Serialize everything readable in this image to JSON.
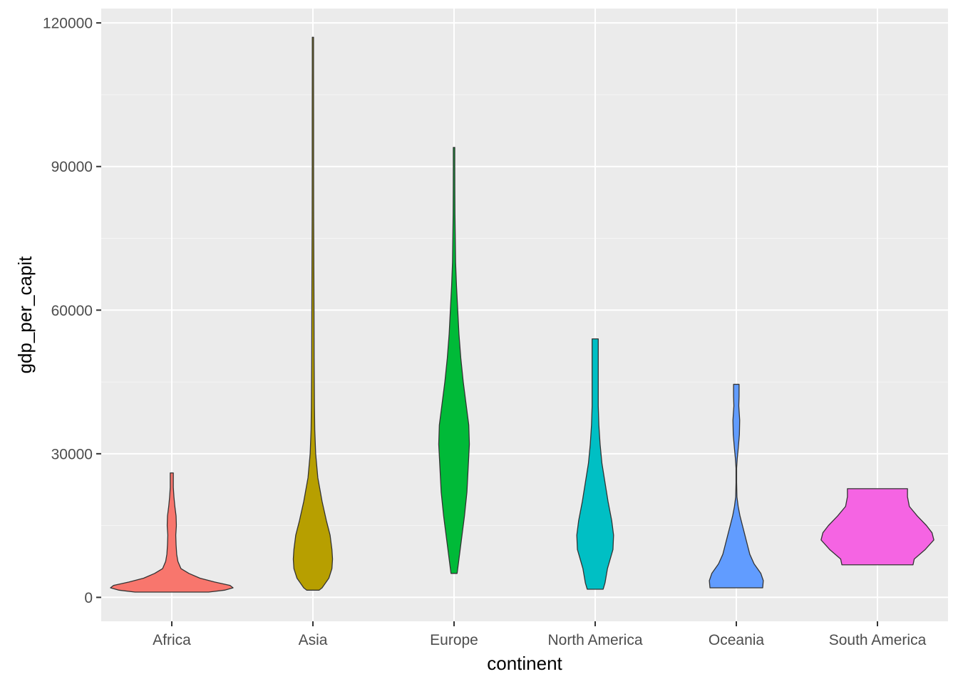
{
  "chart_data": {
    "type": "violin",
    "title": "",
    "xlabel": "continent",
    "ylabel": "gdp_per_capit",
    "categories": [
      "Africa",
      "Asia",
      "Europe",
      "North America",
      "Oceania",
      "South America"
    ],
    "ylim": [
      -5000,
      123000
    ],
    "y_ticks": [
      0,
      30000,
      60000,
      90000,
      120000
    ],
    "y_tick_labels": [
      "0",
      "30000",
      "60000",
      "90000",
      "120000"
    ],
    "grid": true,
    "legend": "none",
    "colors": {
      "panel_background": "#EBEBEB",
      "grid_major": "#FFFFFF",
      "grid_minor": "#F5F5F5",
      "outline": "#333333"
    },
    "series": [
      {
        "category": "Africa",
        "color": "#F8766D",
        "min": 1100,
        "max": 26000,
        "profile": [
          [
            1100,
            0.6
          ],
          [
            1500,
            0.86
          ],
          [
            2000,
            1.0
          ],
          [
            2500,
            0.95
          ],
          [
            3200,
            0.7
          ],
          [
            4000,
            0.46
          ],
          [
            5000,
            0.28
          ],
          [
            6000,
            0.15
          ],
          [
            7500,
            0.1
          ],
          [
            9000,
            0.08
          ],
          [
            11000,
            0.07
          ],
          [
            13000,
            0.065
          ],
          [
            15000,
            0.075
          ],
          [
            17000,
            0.07
          ],
          [
            19000,
            0.05
          ],
          [
            21000,
            0.035
          ],
          [
            23000,
            0.025
          ],
          [
            25000,
            0.025
          ],
          [
            26000,
            0.025
          ]
        ]
      },
      {
        "category": "Asia",
        "color": "#B79F00",
        "min": 1500,
        "max": 117000,
        "profile": [
          [
            1500,
            0.1
          ],
          [
            2000,
            0.15
          ],
          [
            4000,
            0.26
          ],
          [
            6000,
            0.31
          ],
          [
            8000,
            0.32
          ],
          [
            10000,
            0.31
          ],
          [
            13000,
            0.28
          ],
          [
            16000,
            0.22
          ],
          [
            20000,
            0.15
          ],
          [
            25000,
            0.08
          ],
          [
            30000,
            0.045
          ],
          [
            35000,
            0.03
          ],
          [
            40000,
            0.025
          ],
          [
            50000,
            0.02
          ],
          [
            60000,
            0.018
          ],
          [
            70000,
            0.015
          ],
          [
            80000,
            0.012
          ],
          [
            90000,
            0.011
          ],
          [
            100000,
            0.011
          ],
          [
            110000,
            0.01
          ],
          [
            117000,
            0.01
          ]
        ]
      },
      {
        "category": "Europe",
        "color": "#00BA38",
        "min": 5000,
        "max": 94000,
        "profile": [
          [
            5000,
            0.05
          ],
          [
            8000,
            0.08
          ],
          [
            12000,
            0.12
          ],
          [
            17000,
            0.17
          ],
          [
            22000,
            0.21
          ],
          [
            27000,
            0.23
          ],
          [
            32000,
            0.25
          ],
          [
            36000,
            0.24
          ],
          [
            40000,
            0.2
          ],
          [
            45000,
            0.15
          ],
          [
            50000,
            0.11
          ],
          [
            55000,
            0.08
          ],
          [
            60000,
            0.06
          ],
          [
            65000,
            0.04
          ],
          [
            70000,
            0.025
          ],
          [
            75000,
            0.02
          ],
          [
            80000,
            0.015
          ],
          [
            85000,
            0.013
          ],
          [
            90000,
            0.012
          ],
          [
            94000,
            0.012
          ]
        ]
      },
      {
        "category": "North America",
        "color": "#00BFC4",
        "min": 1700,
        "max": 54000,
        "profile": [
          [
            1700,
            0.13
          ],
          [
            3000,
            0.16
          ],
          [
            6000,
            0.2
          ],
          [
            10000,
            0.29
          ],
          [
            13000,
            0.3
          ],
          [
            16000,
            0.27
          ],
          [
            20000,
            0.21
          ],
          [
            24000,
            0.16
          ],
          [
            28000,
            0.11
          ],
          [
            32000,
            0.08
          ],
          [
            36000,
            0.06
          ],
          [
            40000,
            0.05
          ],
          [
            44000,
            0.05
          ],
          [
            48000,
            0.05
          ],
          [
            52000,
            0.05
          ],
          [
            54000,
            0.05
          ]
        ]
      },
      {
        "category": "Oceania",
        "color": "#619CFF",
        "min": 2000,
        "max": 44500,
        "profile": [
          [
            2000,
            0.43
          ],
          [
            3500,
            0.44
          ],
          [
            5000,
            0.4
          ],
          [
            7000,
            0.29
          ],
          [
            9000,
            0.22
          ],
          [
            11000,
            0.18
          ],
          [
            13000,
            0.14
          ],
          [
            15000,
            0.1
          ],
          [
            17000,
            0.06
          ],
          [
            19000,
            0.03
          ],
          [
            21000,
            0.01
          ],
          [
            24000,
            0.005
          ],
          [
            27000,
            0.005
          ],
          [
            29000,
            0.015
          ],
          [
            31000,
            0.03
          ],
          [
            34000,
            0.05
          ],
          [
            37000,
            0.055
          ],
          [
            40000,
            0.04
          ],
          [
            42000,
            0.045
          ],
          [
            44500,
            0.045
          ]
        ]
      },
      {
        "category": "South America",
        "color": "#F564E3",
        "min": 6800,
        "max": 22700,
        "profile": [
          [
            6800,
            0.58
          ],
          [
            8000,
            0.6
          ],
          [
            10000,
            0.78
          ],
          [
            12000,
            0.92
          ],
          [
            13500,
            0.89
          ],
          [
            15000,
            0.8
          ],
          [
            17000,
            0.65
          ],
          [
            19000,
            0.52
          ],
          [
            21000,
            0.49
          ],
          [
            22700,
            0.49
          ]
        ]
      }
    ]
  }
}
